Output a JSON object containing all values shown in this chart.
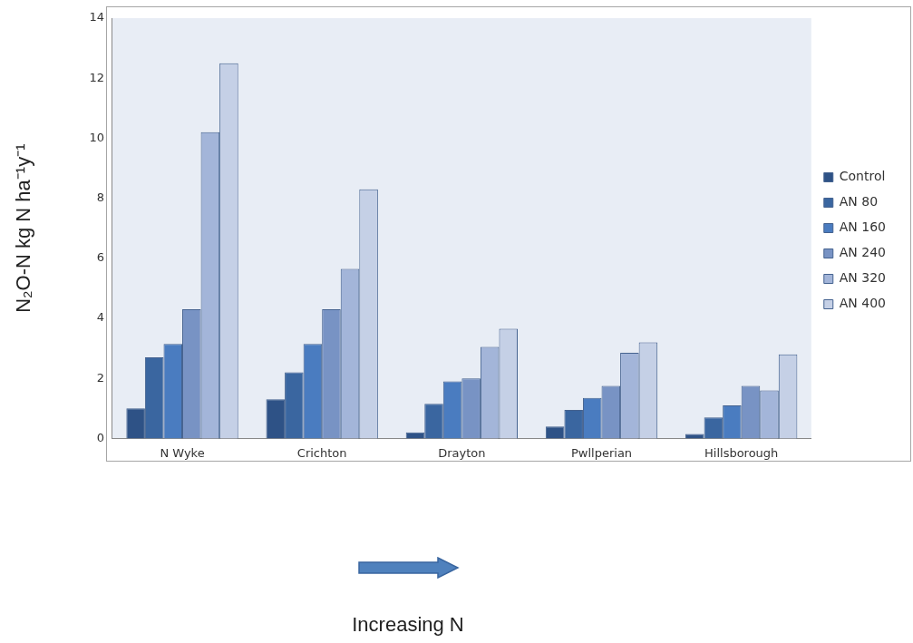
{
  "chart_data": {
    "type": "bar",
    "ylabel": "N₂O-N kg N ha⁻¹y⁻¹",
    "categories": [
      "N Wyke",
      "Crichton",
      "Drayton",
      "Pwllperian",
      "Hillsborough"
    ],
    "series": [
      {
        "name": "Control",
        "color": "#2e5286",
        "values": [
          1.0,
          1.3,
          0.2,
          0.4,
          0.15
        ]
      },
      {
        "name": "AN 80",
        "color": "#3a66a0",
        "values": [
          2.7,
          2.2,
          1.15,
          0.95,
          0.7
        ]
      },
      {
        "name": "AN 160",
        "color": "#4a7cc0",
        "values": [
          3.15,
          3.15,
          1.9,
          1.35,
          1.1
        ]
      },
      {
        "name": "AN 240",
        "color": "#7893c4",
        "values": [
          4.3,
          4.3,
          2.0,
          1.75,
          1.75
        ]
      },
      {
        "name": "AN 320",
        "color": "#a3b5d9",
        "values": [
          10.2,
          5.65,
          3.05,
          2.85,
          1.6
        ]
      },
      {
        "name": "AN 400",
        "color": "#c5d0e6",
        "values": [
          12.5,
          8.3,
          3.65,
          3.2,
          2.8
        ]
      }
    ],
    "ylim": [
      0,
      14
    ],
    "yticks": [
      0,
      2,
      4,
      6,
      8,
      10,
      12,
      14
    ],
    "legend": "right",
    "annotations": [
      "Increasing N"
    ]
  }
}
